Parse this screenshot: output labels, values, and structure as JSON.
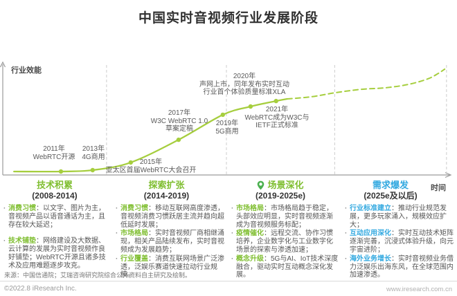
{
  "title": "中国实时音视频行业发展阶段",
  "colors": {
    "curve_green": "#a6ce3e",
    "accent_green": "#7fbe30",
    "accent_blue": "#33a9e0",
    "pin_green": "#4bb04f",
    "axis_gray": "#9a9a9a",
    "boundary_gray": "#cccccc",
    "text_dark": "#303030",
    "text_gray": "#595959"
  },
  "chart_data": {
    "type": "line",
    "title": "中国实时音视频行业发展阶段",
    "xlabel": "时间",
    "ylabel": "行业效能",
    "axis_style": "qualitative S-curve, no numeric ticks; solid line = history, dashed line = projection",
    "legend": [],
    "curve_note": "t = fraction along x-axis, v = relative industry efficiency 0-100 (read from curve height)",
    "curve": {
      "solid": [
        [
          0.025,
          3.3
        ],
        [
          0.13,
          3.3
        ],
        [
          0.201,
          4.6
        ],
        [
          0.286,
          11.8
        ],
        [
          0.393,
          33.3
        ],
        [
          0.492,
          56.9
        ],
        [
          0.554,
          64.7
        ],
        [
          0.611,
          69.9
        ],
        [
          0.636,
          71.9
        ]
      ],
      "dashed": [
        [
          0.636,
          71.9
        ],
        [
          0.69,
          73.9
        ],
        [
          0.744,
          77.8
        ],
        [
          0.803,
          81.0
        ],
        [
          0.856,
          82.4
        ],
        [
          0.907,
          85.6
        ],
        [
          0.95,
          90.8
        ],
        [
          0.974,
          96.1
        ],
        [
          0.988,
          100
        ]
      ]
    },
    "stage_boundaries_t": [
      0.232,
      0.5,
      0.742,
      0.992
    ],
    "milestones": [
      {
        "year": "2011",
        "t": 0.13,
        "v": 3.3,
        "lines": [
          "2011年",
          "WebRTC开源"
        ]
      },
      {
        "year": "2013",
        "t": 0.201,
        "v": 4.6,
        "lines": [
          "2013年",
          "4G商用"
        ]
      },
      {
        "year": "2015",
        "t": 0.286,
        "v": 11.8,
        "lines": [
          "2015年",
          "亚太区首届WebRTC大会召开"
        ]
      },
      {
        "year": "2017",
        "t": 0.393,
        "v": 33.3,
        "lines": [
          "2017年",
          "W3C WebRTC 1.0",
          "草案定稿"
        ]
      },
      {
        "year": "2019",
        "t": 0.492,
        "v": 56.9,
        "lines": [
          "2019年",
          "5G商用"
        ]
      },
      {
        "year": "2020",
        "t": 0.554,
        "v": 64.7,
        "lines": [
          "2020年",
          "声网上市，同年发布实时互动",
          "行业首个体验质量标准XLA"
        ]
      },
      {
        "year": "2021",
        "t": 0.611,
        "v": 69.9,
        "lines": [
          "2021年",
          "WebRTC成为W3C与",
          "IETF正式标准"
        ]
      }
    ]
  },
  "stages": [
    {
      "name": "技术积累",
      "period": "(2008-2014)",
      "accent": "green",
      "has_pin_icon": false,
      "bullets": [
        {
          "lead": "消费习惯",
          "text": "：以文字、图片为主，音视频产品以语音通话为主，且存在较大延迟；"
        },
        {
          "lead": "技术铺垫",
          "text": "：网络建设及大数据、云计算的发展为实时音视频作良好铺垫；WebRTC开源且诸多技术及应用难题逐步攻克。"
        }
      ]
    },
    {
      "name": "探索扩张",
      "period": "(2014-2019)",
      "accent": "green",
      "has_pin_icon": false,
      "bullets": [
        {
          "lead": "消费习惯",
          "text": "：移动互联网高度渗透，音视频消费习惯跃居主流并趋向超低延时发展；"
        },
        {
          "lead": "市场格局",
          "text": "：实时音视频厂商相继涌现，相关产品陆续发布，实时音视频成为发展趋势；"
        },
        {
          "lead": "行业覆盖",
          "text": "：消费互联网场景广泛渗透，泛娱乐赛道快速拉动行业规模。"
        }
      ]
    },
    {
      "name": "场景深化",
      "period": "(2019-2025e)",
      "accent": "green",
      "has_pin_icon": true,
      "bullets": [
        {
          "lead": "市场格局",
          "text": "：市场格局趋于稳定，头部效应明显，实时音视频逐渐成为音视频服务标配；"
        },
        {
          "lead": "疫情催化",
          "text": "：远程交流、协作习惯培养，企业数字化与工业数字化场景的探索与渗透加速；"
        },
        {
          "lead": "概念升级",
          "text": "：5G与AI、IoT技术深度融合，驱动实时互动概念深化发展。"
        }
      ]
    },
    {
      "name": "需求爆发",
      "period": "(2025e及以后)",
      "accent": "blue",
      "has_pin_icon": false,
      "bullets": [
        {
          "lead": "行业标准建立",
          "text": "：推动行业规范发展，更多玩家涌入，规模效应扩大；"
        },
        {
          "lead": "互动应用深化",
          "text": "：实时互动技术矩阵逐渐完善，沉浸式体验升级，向元宇宙进阶；"
        },
        {
          "lead": "海外业务增长",
          "text": "：实时音视频业务借力泛娱乐出海东风，在全球范围内加速渗透。"
        }
      ]
    }
  ],
  "axis": {
    "y_label": "行业效能",
    "x_label": "时间"
  },
  "footer": {
    "source": "来源：中国信通院；艾瑞咨询研究院综合公开资料自主研究及绘制。",
    "copyright": "©2022.8 iResearch Inc.",
    "website": "www.iresearch.com.cn"
  }
}
